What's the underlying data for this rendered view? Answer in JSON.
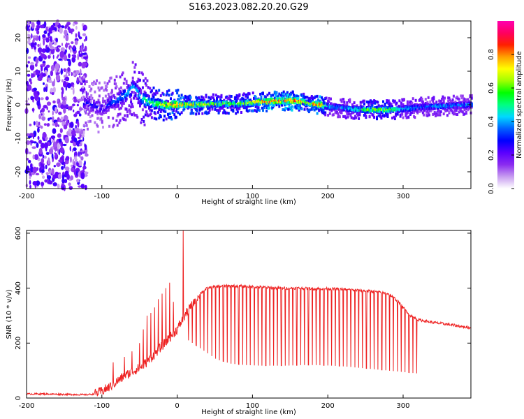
{
  "figure": {
    "title": "S163.2023.082.20.20.G29"
  },
  "chart_data": [
    {
      "type": "heatmap",
      "xlabel": "Height of straight line (km)",
      "ylabel": "Frequency (Hz)",
      "xlim": [
        -200,
        390
      ],
      "ylim": [
        -25,
        25
      ],
      "xticks": [
        "-200",
        "-100",
        "0",
        "100",
        "200",
        "300"
      ],
      "xtick_values": [
        -200,
        -100,
        0,
        100,
        200,
        300
      ],
      "yticks": [
        "-20",
        "-10",
        "0",
        "10",
        "20"
      ],
      "ytick_values": [
        -20,
        -10,
        0,
        10,
        20
      ],
      "colorbar": {
        "label": "Normalized spectral amplitude",
        "range": [
          0,
          1
        ],
        "ticks": [
          "0.0",
          "0.2",
          "0.4",
          "0.6",
          "0.8"
        ],
        "tick_values": [
          0.0,
          0.2,
          0.4,
          0.6,
          0.8
        ],
        "colormap": [
          "#ffffff",
          "#c79cf0",
          "#8b2cf0",
          "#5a00ff",
          "#0000ff",
          "#0060ff",
          "#00d8ff",
          "#00ff80",
          "#00ff00",
          "#a0ff00",
          "#ffff00",
          "#ffa000",
          "#ff2000",
          "#ff0060",
          "#ff00b0"
        ]
      },
      "ridge": {
        "x": [
          -120,
          -110,
          -100,
          -90,
          -80,
          -70,
          -60,
          -55,
          -50,
          -45,
          -40,
          -30,
          -20,
          -10,
          0,
          20,
          40,
          60,
          80,
          100,
          120,
          140,
          160,
          170,
          180,
          190,
          200,
          220,
          240,
          260,
          280,
          300,
          320,
          340,
          360,
          390
        ],
        "y": [
          0.5,
          -0.5,
          -1.0,
          0.5,
          1.5,
          3.0,
          5.0,
          4.0,
          2.5,
          1.5,
          1.0,
          0.3,
          0.0,
          0.0,
          0.0,
          0.0,
          0.2,
          0.3,
          0.2,
          0.8,
          1.0,
          1.2,
          1.2,
          0.6,
          0.2,
          0.0,
          -0.5,
          -1.0,
          -1.5,
          -1.5,
          -1.5,
          -1.2,
          -0.8,
          -0.5,
          -0.3,
          0.0
        ],
        "amplitude": [
          0.3,
          0.3,
          0.3,
          0.35,
          0.4,
          0.45,
          0.5,
          0.5,
          0.5,
          0.55,
          0.6,
          0.7,
          0.8,
          0.85,
          0.9,
          0.85,
          0.75,
          0.7,
          0.7,
          0.85,
          1.0,
          1.0,
          1.0,
          0.7,
          0.9,
          0.95,
          0.5,
          0.45,
          0.6,
          0.75,
          0.7,
          0.5,
          0.45,
          0.45,
          0.45,
          0.45
        ]
      },
      "noise_region_x": [
        -200,
        -120
      ]
    },
    {
      "type": "line",
      "xlabel": "Height of straight line (km)",
      "ylabel": "SNR (10 * v/v)",
      "xlim": [
        -200,
        390
      ],
      "ylim": [
        0,
        610
      ],
      "xticks": [
        "-200",
        "-100",
        "0",
        "100",
        "200",
        "300"
      ],
      "xtick_values": [
        -200,
        -100,
        0,
        100,
        200,
        300
      ],
      "yticks": [
        "0",
        "200",
        "400",
        "600"
      ],
      "ytick_values": [
        0,
        200,
        400,
        600
      ],
      "series": [
        {
          "color": "#ee2222",
          "x": [
            -200,
            -180,
            -160,
            -140,
            -120,
            -110,
            -100,
            -90,
            -80,
            -70,
            -60,
            -50,
            -40,
            -30,
            -20,
            -10,
            0,
            10,
            20,
            30,
            40,
            50,
            60,
            80,
            100,
            120,
            140,
            160,
            180,
            200,
            220,
            240,
            260,
            280,
            290,
            300,
            310,
            320,
            340,
            360,
            390
          ],
          "y": [
            15,
            15,
            14,
            13,
            12,
            15,
            25,
            40,
            60,
            80,
            95,
            110,
            130,
            160,
            190,
            220,
            250,
            300,
            340,
            380,
            400,
            405,
            408,
            408,
            405,
            402,
            400,
            400,
            398,
            398,
            396,
            392,
            388,
            380,
            360,
            330,
            300,
            285,
            275,
            268,
            255
          ],
          "spikes": {
            "x": [
              -85,
              -70,
              -60,
              -50,
              -45,
              -40,
              -35,
              -30,
              -25,
              -20,
              -15,
              -10,
              -5,
              8
            ],
            "y": [
              130,
              150,
              170,
              200,
              250,
              300,
              310,
              330,
              360,
              380,
              400,
              420,
              350,
              610
            ]
          },
          "dropouts": {
            "x_start": 15,
            "x_end": 318,
            "count": 60,
            "floor": [
              210,
              175,
              140,
              125,
              120,
              118,
              118,
              118,
              120,
              120,
              118,
              115,
              110,
              105,
              100,
              95,
              90
            ]
          }
        }
      ]
    }
  ]
}
